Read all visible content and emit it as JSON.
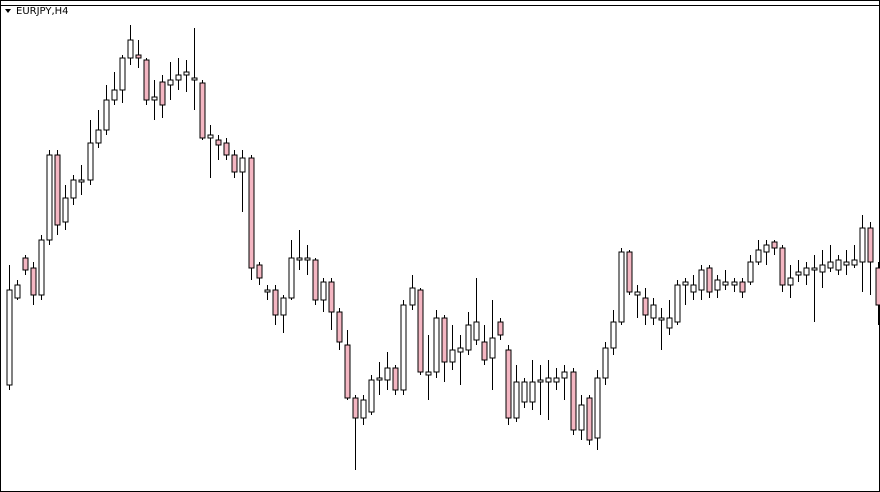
{
  "chart_data": {
    "type": "candlestick",
    "title": "EURJPY,H4",
    "ylim": [
      0,
      492
    ],
    "up_color": "#ffffff",
    "down_color": "#f4b6c2",
    "wick_color": "#000000",
    "open": [
      107,
      194,
      234,
      224,
      197,
      252,
      337,
      270,
      294,
      310,
      312,
      349,
      362,
      392,
      402,
      434,
      437,
      432,
      392,
      410,
      407,
      412,
      417,
      412,
      409,
      354,
      352,
      349,
      337,
      320,
      334,
      227,
      200,
      202,
      177,
      194,
      232,
      232,
      232,
      192,
      210,
      180,
      147,
      94,
      74,
      80,
      112,
      112,
      124,
      102,
      187,
      202,
      117,
      120,
      174,
      130,
      140,
      142,
      152,
      150,
      134,
      170,
      142,
      74,
      90,
      90,
      110,
      110,
      110,
      114,
      120,
      62,
      94,
      54,
      114,
      144,
      170,
      240,
      197,
      194,
      174,
      172,
      164,
      170,
      207,
      200,
      202,
      224,
      202,
      207,
      207,
      210,
      210,
      230,
      240,
      250,
      244,
      207,
      217,
      217,
      222,
      220,
      224,
      222,
      227,
      227,
      230,
      264,
      224
    ],
    "high": [
      227,
      212,
      237,
      230,
      257,
      342,
      342,
      307,
      317,
      327,
      372,
      382,
      407,
      420,
      437,
      467,
      452,
      434,
      412,
      417,
      430,
      434,
      432,
      464,
      412,
      367,
      357,
      354,
      342,
      342,
      337,
      230,
      207,
      207,
      197,
      252,
      262,
      247,
      234,
      214,
      214,
      184,
      162,
      97,
      97,
      117,
      130,
      140,
      127,
      192,
      217,
      204,
      157,
      182,
      177,
      167,
      157,
      180,
      214,
      167,
      192,
      174,
      147,
      127,
      114,
      132,
      127,
      132,
      124,
      127,
      124,
      97,
      97,
      122,
      150,
      182,
      244,
      242,
      207,
      204,
      194,
      184,
      192,
      212,
      214,
      217,
      227,
      227,
      217,
      222,
      214,
      214,
      237,
      252,
      252,
      252,
      247,
      227,
      232,
      230,
      237,
      242,
      247,
      237,
      242,
      247,
      277,
      270,
      230
    ],
    "low": [
      102,
      192,
      217,
      187,
      192,
      247,
      257,
      262,
      287,
      297,
      307,
      344,
      357,
      387,
      389,
      427,
      424,
      387,
      372,
      374,
      392,
      402,
      400,
      382,
      352,
      314,
      332,
      332,
      314,
      280,
      212,
      207,
      192,
      167,
      159,
      192,
      222,
      217,
      187,
      180,
      162,
      142,
      92,
      22,
      67,
      77,
      97,
      102,
      97,
      97,
      182,
      117,
      92,
      114,
      110,
      122,
      107,
      137,
      147,
      127,
      102,
      152,
      67,
      70,
      84,
      82,
      77,
      72,
      102,
      92,
      57,
      52,
      47,
      42,
      107,
      137,
      167,
      197,
      174,
      167,
      167,
      142,
      157,
      167,
      187,
      192,
      192,
      194,
      194,
      202,
      200,
      194,
      207,
      227,
      227,
      237,
      200,
      194,
      210,
      207,
      170,
      204,
      220,
      217,
      217,
      224,
      200,
      197,
      167
    ],
    "close": [
      202,
      207,
      222,
      197,
      252,
      337,
      267,
      294,
      312,
      312,
      349,
      362,
      392,
      402,
      434,
      452,
      434,
      392,
      395,
      387,
      412,
      417,
      420,
      414,
      354,
      357,
      347,
      337,
      320,
      334,
      224,
      214,
      202,
      177,
      194,
      234,
      234,
      234,
      192,
      210,
      180,
      150,
      94,
      74,
      92,
      112,
      114,
      124,
      102,
      187,
      204,
      120,
      120,
      174,
      130,
      142,
      144,
      167,
      170,
      132,
      154,
      157,
      74,
      110,
      110,
      110,
      112,
      114,
      114,
      120,
      62,
      87,
      52,
      114,
      144,
      170,
      240,
      200,
      200,
      177,
      187,
      174,
      174,
      207,
      210,
      207,
      222,
      200,
      212,
      210,
      210,
      200,
      230,
      242,
      247,
      244,
      207,
      214,
      220,
      224,
      224,
      227,
      230,
      232,
      230,
      232,
      264,
      230,
      187
    ]
  }
}
